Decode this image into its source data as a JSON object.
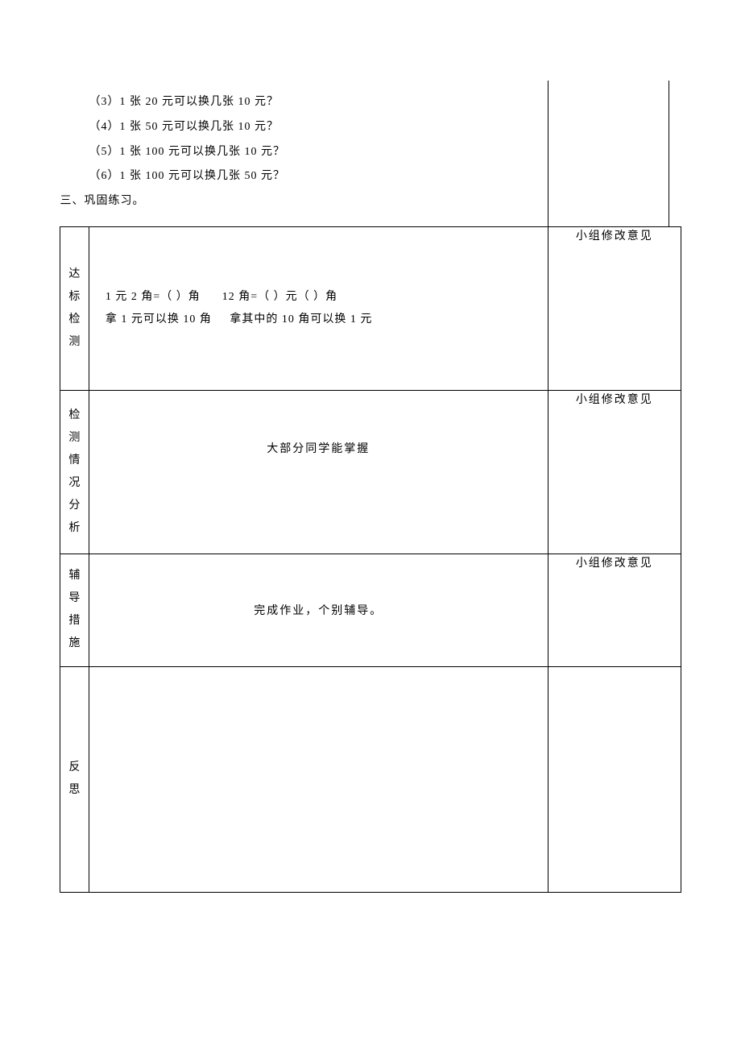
{
  "top": {
    "q3": "（3）1 张 20 元可以换几张 10 元？",
    "q4": "（4）1 张 50 元可以换几张 10 元？",
    "q5": "（5）1 张 100 元可以换几张 10 元？",
    "q6": "（6）1 张 100 元可以换几张 50 元？",
    "section3": "三、巩固练习。"
  },
  "labels": {
    "dabiao": "达标检测",
    "jiance": "检测情况分析",
    "fudao": "辅导措施",
    "fansi": "反思"
  },
  "dabiao": {
    "line1a": "1 元 2 角=（ ）角",
    "line1b": "12 角=（ ）元（ ）角",
    "line2a": "拿 1 元可以换 10 角",
    "line2b": "拿其中的 10 角可以换 1 元"
  },
  "jiance": {
    "content": "大部分同学能掌握"
  },
  "fudao": {
    "content": "完成作业，个别辅导。"
  },
  "right": {
    "header": "小组修改意见"
  }
}
